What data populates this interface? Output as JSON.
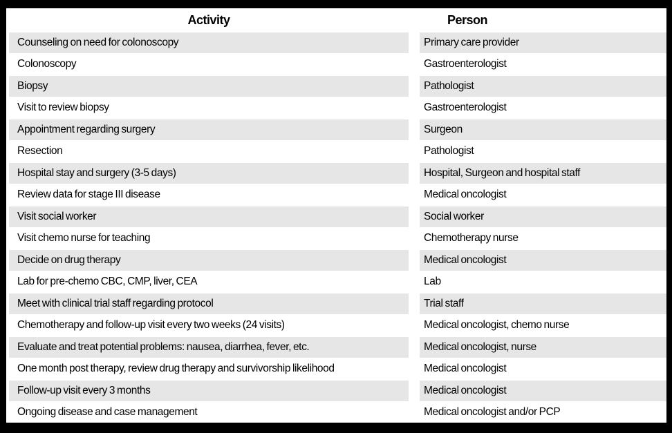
{
  "table": {
    "headers": {
      "activity": "Activity",
      "person": "Person"
    },
    "rows": [
      {
        "activity": "Counseling on need for colonoscopy",
        "person": "Primary care provider"
      },
      {
        "activity": "Colonoscopy",
        "person": "Gastroenterologist"
      },
      {
        "activity": "Biopsy",
        "person": "Pathologist"
      },
      {
        "activity": "Visit to review biopsy",
        "person": "Gastroenterologist"
      },
      {
        "activity": "Appointment regarding surgery",
        "person": "Surgeon"
      },
      {
        "activity": "Resection",
        "person": "Pathologist"
      },
      {
        "activity": "Hospital stay and surgery (3-5 days)",
        "person": "Hospital, Surgeon and hospital staff"
      },
      {
        "activity": "Review data for stage III disease",
        "person": "Medical oncologist"
      },
      {
        "activity": "Visit social worker",
        "person": "Social worker"
      },
      {
        "activity": "Visit chemo nurse for teaching",
        "person": "Chemotherapy nurse"
      },
      {
        "activity": "Decide on drug therapy",
        "person": "Medical oncologist"
      },
      {
        "activity": "Lab for pre-chemo CBC, CMP, liver, CEA",
        "person": "Lab"
      },
      {
        "activity": "Meet with clinical trial staff regarding protocol",
        "person": "Trial staff"
      },
      {
        "activity": "Chemotherapy and follow-up visit every two weeks (24 visits)",
        "person": "Medical oncologist, chemo nurse"
      },
      {
        "activity": "Evaluate and treat potential problems: nausea, diarrhea, fever, etc.",
        "person": "Medical oncologist, nurse"
      },
      {
        "activity": "One month post therapy, review drug therapy and survivorship likelihood",
        "person": "Medical oncologist"
      },
      {
        "activity": "Follow-up visit every 3 months",
        "person": "Medical oncologist"
      },
      {
        "activity": "Ongoing disease and case management",
        "person": "Medical oncologist and/or PCP"
      }
    ],
    "colors": {
      "shaded_row": "#e6e6e6",
      "plain_row": "#ffffff",
      "frame_border": "#000000",
      "text": "#000000"
    }
  }
}
